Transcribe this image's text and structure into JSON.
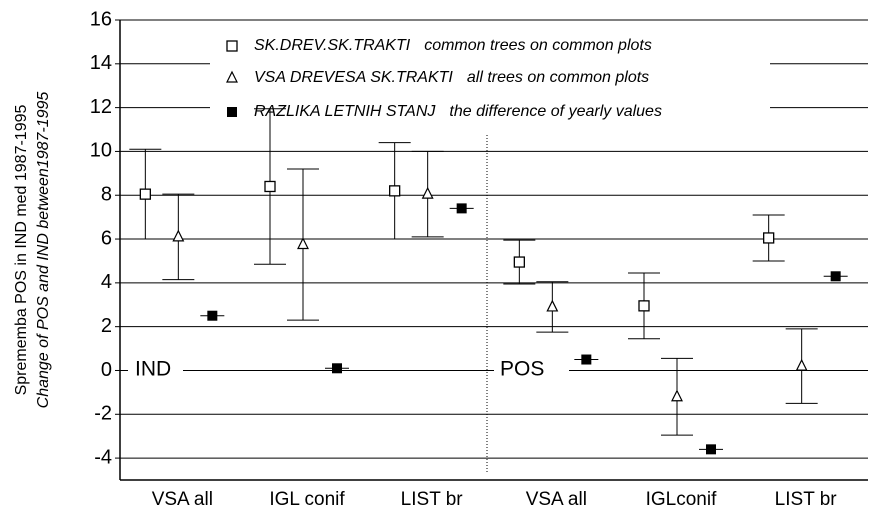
{
  "chart_data": {
    "type": "errorbar",
    "y_label": [
      "Sprememba POS in IND med 1987-1995",
      "Change of POS and IND between1987-1995"
    ],
    "annotations": [
      "IND",
      "POS"
    ],
    "categories": [
      "VSA all",
      "IGL conif",
      "LIST br",
      "VSA all",
      "IGLconif",
      "LIST br"
    ],
    "series": [
      {
        "name": "SK.DREV.SK.TRAKTI",
        "description": "common trees on common plots",
        "color": "#000000",
        "marker": "square-open",
        "values": [
          8.05,
          8.4,
          8.2,
          4.95,
          2.95,
          6.05
        ],
        "errors": [
          2.05,
          3.55,
          2.2,
          1.0,
          1.5,
          1.05
        ]
      },
      {
        "name": "VSA DREVESA SK.TRAKTI",
        "description": "all trees on common plots",
        "color": "#000000",
        "marker": "triangle-open",
        "values": [
          6.1,
          5.75,
          8.05,
          2.9,
          -1.2,
          0.2
        ],
        "errors": [
          1.95,
          3.45,
          1.95,
          1.15,
          1.75,
          1.7
        ]
      },
      {
        "name": "RAZLIKA LETNIH STANJ",
        "description": "the difference of yearly values",
        "color": "#000000",
        "marker": "square-filled",
        "values": [
          2.5,
          0.1,
          7.4,
          0.5,
          -3.6,
          4.3
        ]
      }
    ],
    "ylim": [
      -5,
      16
    ],
    "yticks": [
      -4,
      -2,
      0,
      2,
      4,
      6,
      8,
      10,
      12,
      14,
      16
    ],
    "grid": true
  }
}
